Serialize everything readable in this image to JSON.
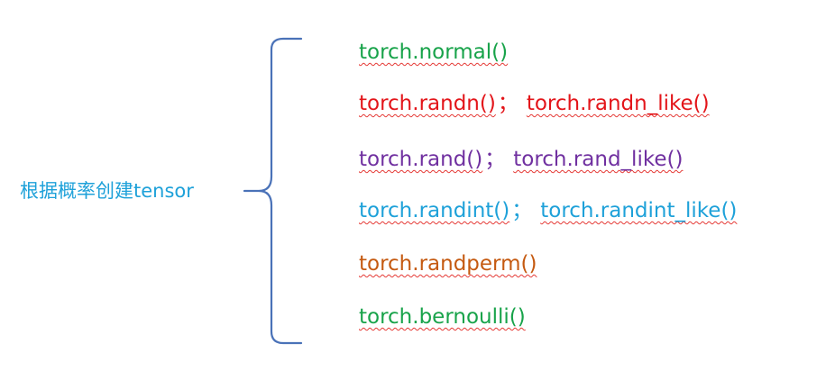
{
  "root": {
    "label": "根据概率创建tensor",
    "color": "#1ea1d9"
  },
  "brace": {
    "color": "#4a72b8"
  },
  "items": [
    {
      "first": "torch.normal()",
      "sep": "",
      "second": "",
      "color": "#18a34a"
    },
    {
      "first": "torch.randn()",
      "sep": "；",
      "second": "torch.randn_like()",
      "color": "#e3151a"
    },
    {
      "first": "torch.rand()",
      "sep": "；",
      "second": "torch.rand_like()",
      "color": "#7030a0"
    },
    {
      "first": "torch.randint()",
      "sep": "；",
      "second": "torch.randint_like()",
      "color": "#1ea1d9"
    },
    {
      "first": "torch.randperm()",
      "sep": "",
      "second": "",
      "color": "#c55a11"
    },
    {
      "first": "torch.bernoulli()",
      "sep": "",
      "second": "",
      "color": "#18a34a"
    }
  ]
}
